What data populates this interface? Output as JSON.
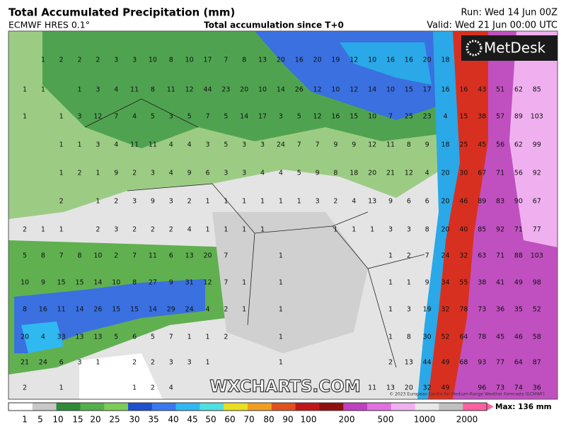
{
  "header": {
    "title": "Total Accumulated Precipitation (mm)",
    "model": "ECMWF HRES 0.1°",
    "subtitle": "Total accumulation since T+0",
    "run": "Run: Wed 14 Jun 00Z",
    "valid": "Valid: Wed 21 Jun 00:00 UTC"
  },
  "logo": "MetDesk",
  "watermark": "WXCHARTS.COM",
  "copyright": "© 2023 European Centre for Medium-Range Weather Forecasts (ECMWF)",
  "grid_values": [
    [
      null,
      1,
      2,
      2,
      2,
      3,
      3,
      10,
      8,
      10,
      17,
      7,
      8,
      13,
      20,
      16,
      20,
      19,
      12,
      10,
      16,
      16,
      20,
      18,
      null,
      null,
      null,
      null,
      null
    ],
    [
      1,
      1,
      null,
      1,
      3,
      4,
      11,
      8,
      11,
      12,
      44,
      23,
      20,
      10,
      14,
      26,
      12,
      10,
      12,
      14,
      10,
      15,
      17,
      16,
      16,
      43,
      51,
      62,
      85
    ],
    [
      1,
      null,
      1,
      3,
      12,
      7,
      4,
      5,
      3,
      5,
      7,
      5,
      14,
      17,
      3,
      5,
      12,
      16,
      15,
      10,
      7,
      25,
      23,
      4,
      15,
      38,
      57,
      89,
      103
    ],
    [
      null,
      null,
      1,
      1,
      3,
      4,
      11,
      11,
      4,
      4,
      3,
      5,
      3,
      3,
      24,
      7,
      7,
      9,
      9,
      12,
      11,
      8,
      9,
      18,
      25,
      45,
      56,
      62,
      99
    ],
    [
      null,
      null,
      1,
      2,
      1,
      9,
      2,
      3,
      4,
      9,
      6,
      3,
      3,
      4,
      4,
      5,
      9,
      8,
      18,
      20,
      21,
      12,
      4,
      20,
      30,
      67,
      71,
      56,
      92
    ],
    [
      null,
      null,
      2,
      null,
      1,
      2,
      3,
      9,
      3,
      2,
      1,
      1,
      1,
      1,
      1,
      1,
      3,
      2,
      4,
      13,
      9,
      6,
      6,
      20,
      46,
      89,
      83,
      90,
      67
    ],
    [
      2,
      1,
      1,
      null,
      2,
      3,
      2,
      2,
      2,
      4,
      1,
      1,
      1,
      1,
      null,
      null,
      null,
      1,
      1,
      1,
      3,
      3,
      8,
      20,
      40,
      85,
      92,
      71,
      77
    ],
    [
      5,
      8,
      7,
      8,
      10,
      2,
      7,
      11,
      6,
      13,
      20,
      7,
      null,
      null,
      1,
      null,
      null,
      null,
      null,
      null,
      1,
      2,
      7,
      24,
      32,
      63,
      71,
      88,
      103
    ],
    [
      10,
      9,
      15,
      15,
      14,
      10,
      8,
      27,
      9,
      31,
      12,
      7,
      1,
      null,
      1,
      null,
      null,
      null,
      null,
      null,
      1,
      1,
      9,
      34,
      55,
      38,
      41,
      49,
      98
    ],
    [
      8,
      16,
      11,
      14,
      26,
      15,
      15,
      14,
      29,
      24,
      4,
      2,
      1,
      null,
      1,
      null,
      null,
      null,
      null,
      null,
      1,
      3,
      19,
      32,
      78,
      73,
      36,
      35,
      52
    ],
    [
      20,
      4,
      33,
      13,
      13,
      5,
      6,
      5,
      7,
      1,
      1,
      2,
      null,
      null,
      1,
      null,
      null,
      null,
      null,
      null,
      1,
      8,
      30,
      52,
      64,
      78,
      45,
      46,
      58
    ],
    [
      21,
      24,
      6,
      3,
      1,
      null,
      2,
      2,
      3,
      3,
      1,
      null,
      null,
      null,
      1,
      null,
      null,
      null,
      null,
      null,
      2,
      13,
      44,
      49,
      68,
      93,
      77,
      64,
      87
    ],
    [
      2,
      null,
      1,
      null,
      null,
      null,
      1,
      2,
      4,
      null,
      null,
      null,
      null,
      null,
      null,
      null,
      null,
      null,
      null,
      11,
      13,
      20,
      32,
      49,
      null,
      96,
      73,
      74,
      36
    ]
  ],
  "legend": {
    "ticks": [
      1,
      5,
      10,
      15,
      20,
      25,
      30,
      35,
      40,
      45,
      50,
      60,
      70,
      80,
      90,
      100,
      200,
      500,
      1000,
      2000
    ],
    "max_label": "Max: 136 mm",
    "colors": [
      "#ffffff",
      "#c8c8c8",
      "#2e8b3a",
      "#54b04a",
      "#7ccc5a",
      "#1e50d0",
      "#3a78f0",
      "#30b8f0",
      "#50e0e0",
      "#e8e020",
      "#f0a020",
      "#e05020",
      "#c01818",
      "#901010",
      "#c040c0",
      "#e070e0",
      "#f0b0f0",
      "#e8e8e8",
      "#c0c0c0",
      "#ff60a0"
    ]
  }
}
